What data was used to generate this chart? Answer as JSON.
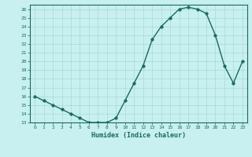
{
  "x": [
    0,
    1,
    2,
    3,
    4,
    5,
    6,
    7,
    8,
    9,
    10,
    11,
    12,
    13,
    14,
    15,
    16,
    17,
    18,
    19,
    20,
    21,
    22,
    23
  ],
  "y": [
    16,
    15.5,
    15,
    14.5,
    14,
    13.5,
    13,
    13,
    13,
    13.5,
    15.5,
    17.5,
    19.5,
    22.5,
    24,
    25,
    26,
    26.2,
    26,
    25.5,
    23,
    19.5,
    17.5,
    20
  ],
  "xlabel": "Humidex (Indice chaleur)",
  "ylabel": "",
  "xlim": [
    -0.5,
    23.5
  ],
  "ylim": [
    13,
    26.5
  ],
  "yticks": [
    13,
    14,
    15,
    16,
    17,
    18,
    19,
    20,
    21,
    22,
    23,
    24,
    25,
    26
  ],
  "xticks": [
    0,
    1,
    2,
    3,
    4,
    5,
    6,
    7,
    8,
    9,
    10,
    11,
    12,
    13,
    14,
    15,
    16,
    17,
    18,
    19,
    20,
    21,
    22,
    23
  ],
  "line_color": "#1a6b5a",
  "marker_color": "#1a6b5a",
  "bg_color": "#c8f0f0",
  "grid_color": "#a8d8d8",
  "axis_color": "#1a6b5a",
  "tick_label_color": "#1a6b5a",
  "xlabel_color": "#1a6b5a",
  "line_width": 1.0,
  "marker_size": 2.5
}
